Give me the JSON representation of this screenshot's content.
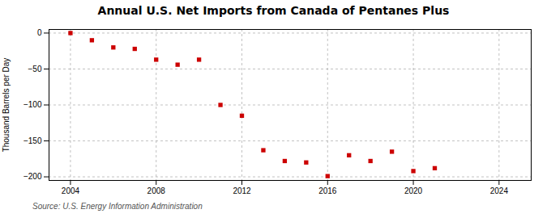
{
  "chart_data": {
    "type": "scatter",
    "title": "Annual U.S. Net Imports from Canada of Pentanes Plus",
    "ylabel": "Thousand Barrels per Day",
    "source": "Source: U.S. Energy Information Administration",
    "x": [
      2004,
      2005,
      2006,
      2007,
      2008,
      2009,
      2010,
      2011,
      2012,
      2013,
      2014,
      2015,
      2016,
      2017,
      2018,
      2019,
      2020,
      2021
    ],
    "values": [
      0,
      -10,
      -20,
      -22,
      -37,
      -44,
      -37,
      -100,
      -115,
      -163,
      -178,
      -180,
      -199,
      -170,
      -178,
      -165,
      -192,
      -188
    ],
    "color": "#cc0000",
    "marker": "square",
    "xlim": [
      2003.0,
      2025.5
    ],
    "ylim": [
      -205,
      5
    ],
    "xticks": [
      2004,
      2008,
      2012,
      2016,
      2020,
      2024
    ],
    "yticks": [
      0,
      -50,
      -100,
      -150,
      -200
    ],
    "grid": true
  }
}
